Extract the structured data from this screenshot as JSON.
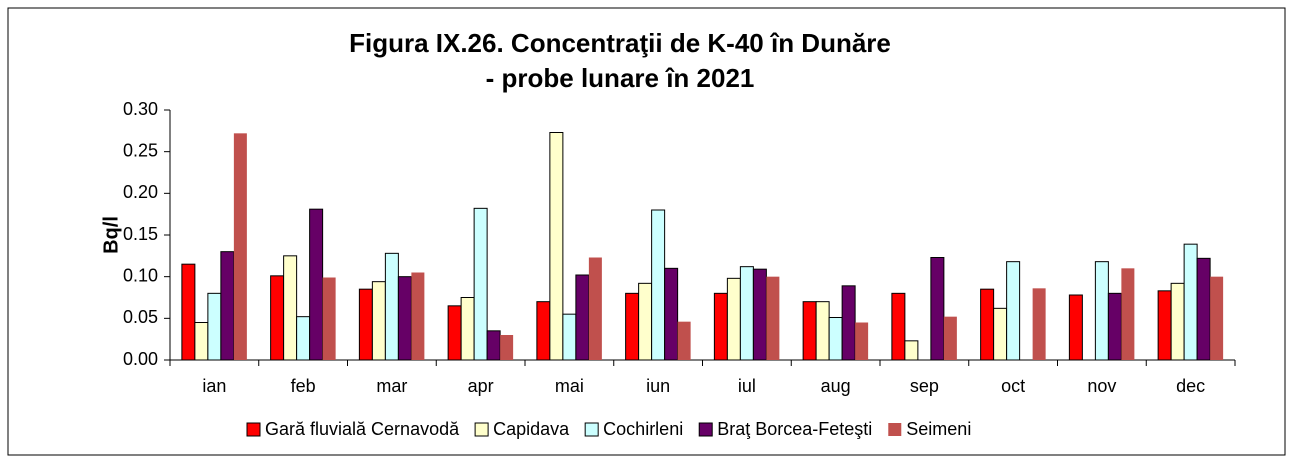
{
  "chart_data": {
    "type": "bar",
    "title": "Figura IX.26. Concentraţii de K-40 în Dunăre",
    "subtitle": "- probe lunare în 2021",
    "y_label": "Bq/l",
    "categories": [
      "ian",
      "feb",
      "mar",
      "apr",
      "mai",
      "iun",
      "iul",
      "aug",
      "sep",
      "oct",
      "nov",
      "dec"
    ],
    "series": [
      {
        "name": "Gară fluvială Cernavodă",
        "color": "#ff0000",
        "values": [
          0.115,
          0.101,
          0.085,
          0.065,
          0.07,
          0.08,
          0.08,
          0.07,
          0.08,
          0.085,
          0.078,
          0.083
        ]
      },
      {
        "name": "Capidava",
        "color": "#ffffcc",
        "values": [
          0.045,
          0.125,
          0.094,
          0.075,
          0.273,
          0.092,
          0.098,
          0.07,
          0.023,
          0.062,
          null,
          0.092
        ]
      },
      {
        "name": "Cochirleni",
        "color": "#ccffff",
        "values": [
          0.08,
          0.052,
          0.128,
          0.182,
          0.055,
          0.18,
          0.112,
          0.051,
          null,
          0.118,
          0.118,
          0.139
        ]
      },
      {
        "name": "Braţ Borcea-Feteşti",
        "color": "#660066",
        "values": [
          0.13,
          0.181,
          0.1,
          0.035,
          0.102,
          0.11,
          0.109,
          0.089,
          0.123,
          null,
          0.08,
          0.122
        ]
      },
      {
        "name": "Seimeni",
        "color": "#c0504d",
        "values": [
          0.272,
          0.099,
          0.105,
          0.03,
          0.123,
          0.046,
          0.1,
          0.045,
          0.052,
          0.086,
          0.11,
          0.1
        ]
      }
    ],
    "ylim": [
      0,
      0.3
    ],
    "yticks": [
      {
        "value": 0,
        "label": "0.00"
      },
      0.05,
      {
        "value": 0.1,
        "label": "0.10"
      },
      0.15,
      {
        "value": 0.2,
        "label": "0.20"
      },
      0.25,
      {
        "value": 0.3,
        "label": "0.30"
      }
    ],
    "grid": false,
    "legend": "bottom"
  }
}
